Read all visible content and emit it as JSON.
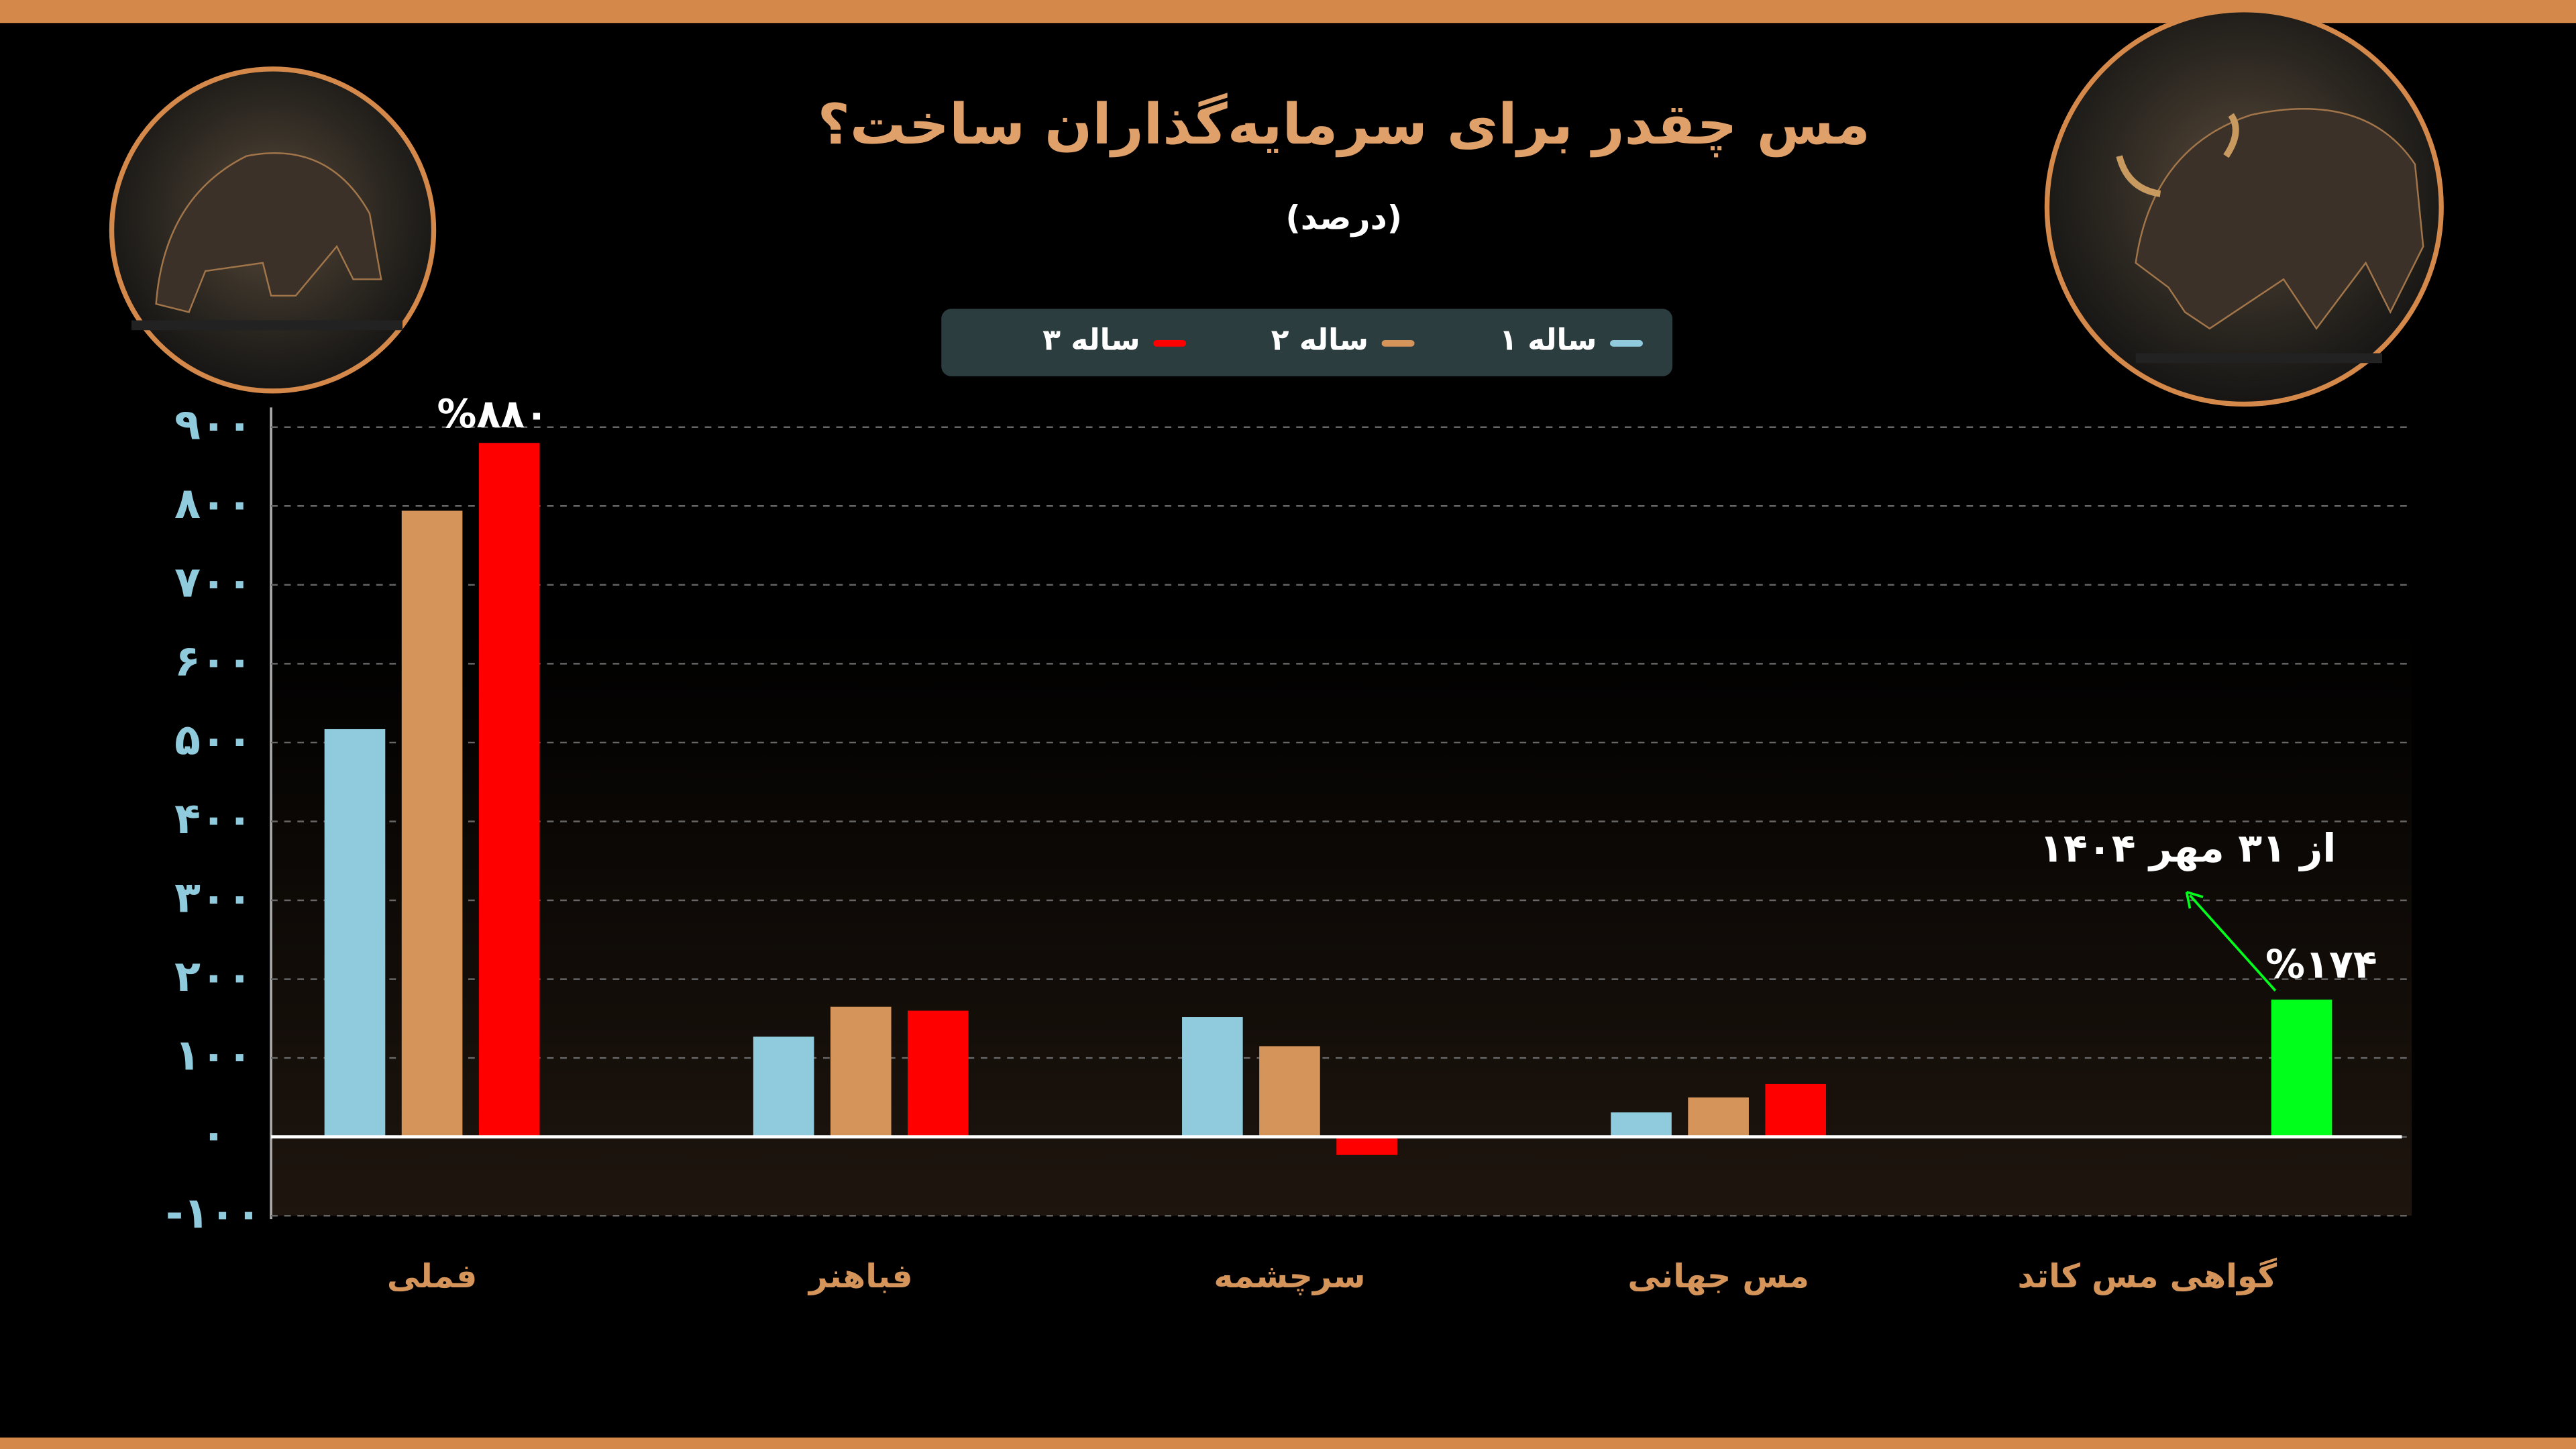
{
  "chart_data": {
    "type": "bar",
    "title": "مس چقدر برای سرمایه‌گذاران ساخت؟",
    "subtitle": "(درصد)",
    "categories": [
      "فملی",
      "فباهنر",
      "سرچشمه",
      "مس جهانی",
      "گواهی مس کاتد"
    ],
    "series": [
      {
        "name": "۱ ساله",
        "color": "#8fcbdc",
        "values": [
          517,
          127,
          152,
          31,
          null
        ]
      },
      {
        "name": "۲ ساله",
        "color": "#d4945a",
        "values": [
          794,
          165,
          115,
          50,
          null
        ]
      },
      {
        "name": "۳ ساله",
        "color": "#ff0000",
        "values": [
          880,
          160,
          -23,
          67,
          null
        ],
        "value_labels": [
          "%۸۸۰",
          null,
          null,
          null,
          null
        ]
      },
      {
        "color": "#00ff1a",
        "values": [
          null,
          null,
          null,
          null,
          174
        ],
        "value_labels": [
          null,
          null,
          null,
          null,
          "%۱۷۴"
        ]
      }
    ],
    "ylim": [
      -100,
      900
    ],
    "yticks": [
      {
        "value": -100,
        "label": "-۱۰۰"
      },
      {
        "value": 0,
        "label": "۰"
      },
      {
        "value": 100,
        "label": "۱۰۰"
      },
      {
        "value": 200,
        "label": "۲۰۰"
      },
      {
        "value": 300,
        "label": "۳۰۰"
      },
      {
        "value": 400,
        "label": "۴۰۰"
      },
      {
        "value": 500,
        "label": "۵۰۰"
      },
      {
        "value": 600,
        "label": "۶۰۰"
      },
      {
        "value": 700,
        "label": "۷۰۰"
      },
      {
        "value": 800,
        "label": "۸۰۰"
      },
      {
        "value": 900,
        "label": "۹۰۰"
      }
    ],
    "grid": true,
    "annotation": "از ۳۱ مهر ۱۴۰۴"
  }
}
